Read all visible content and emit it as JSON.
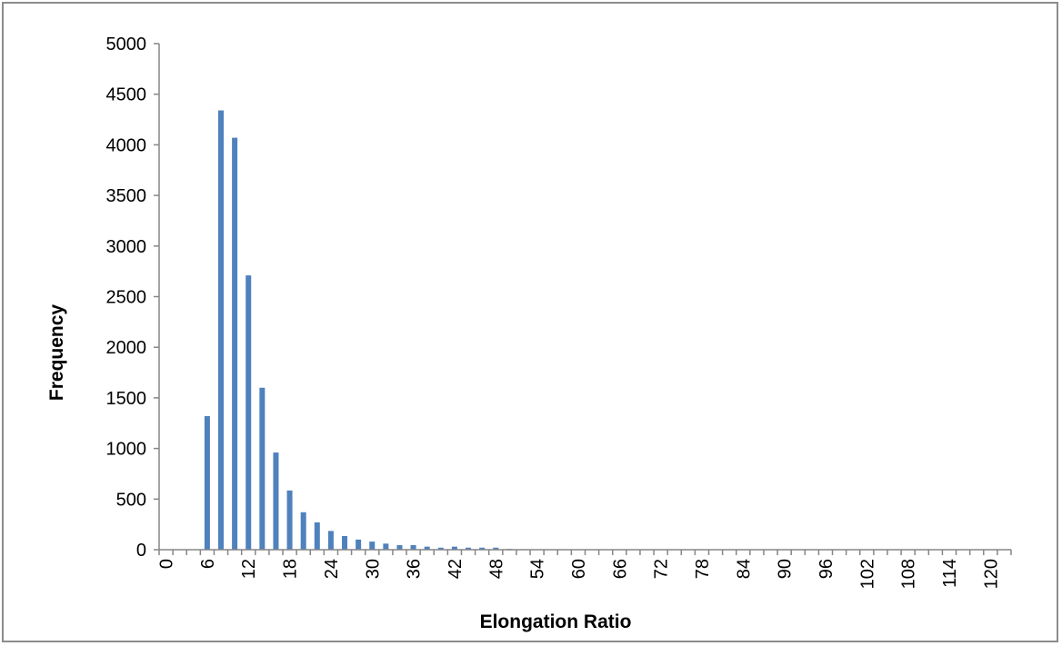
{
  "chart_data": {
    "type": "bar",
    "title": "",
    "xlabel": "Elongation Ratio",
    "ylabel": "Frequency",
    "ylim": [
      0,
      5000
    ],
    "yticks": [
      0,
      500,
      1000,
      1500,
      2000,
      2500,
      3000,
      3500,
      4000,
      4500,
      5000
    ],
    "xticks": [
      "0",
      "6",
      "12",
      "18",
      "24",
      "30",
      "36",
      "42",
      "48",
      "54",
      "60",
      "66",
      "72",
      "78",
      "84",
      "90",
      "96",
      "102",
      "108",
      "114",
      "120"
    ],
    "grid": false,
    "legend": "none",
    "bar_color": "#4f81bd",
    "categories": [
      0,
      2,
      4,
      6,
      8,
      10,
      12,
      14,
      16,
      18,
      20,
      22,
      24,
      26,
      28,
      30,
      32,
      34,
      36,
      38,
      40,
      42,
      44,
      46,
      48,
      50,
      52,
      54,
      56,
      58,
      60,
      62,
      64,
      66,
      68,
      70,
      72,
      74,
      76,
      78,
      80,
      82,
      84,
      86,
      88,
      90,
      92,
      94,
      96,
      98,
      100,
      102,
      104,
      106,
      108,
      110,
      112,
      114,
      116,
      118,
      120,
      122
    ],
    "values": [
      0,
      0,
      0,
      1320,
      4340,
      4070,
      2710,
      1600,
      960,
      585,
      370,
      270,
      185,
      135,
      100,
      80,
      60,
      45,
      45,
      30,
      20,
      30,
      20,
      20,
      20,
      8,
      5,
      4,
      3,
      2,
      2,
      1,
      1,
      1,
      1,
      0,
      0,
      0,
      0,
      0,
      0,
      0,
      0,
      0,
      0,
      0,
      0,
      0,
      0,
      0,
      0,
      0,
      0,
      0,
      0,
      0,
      0,
      0,
      0,
      0,
      0,
      0
    ]
  }
}
